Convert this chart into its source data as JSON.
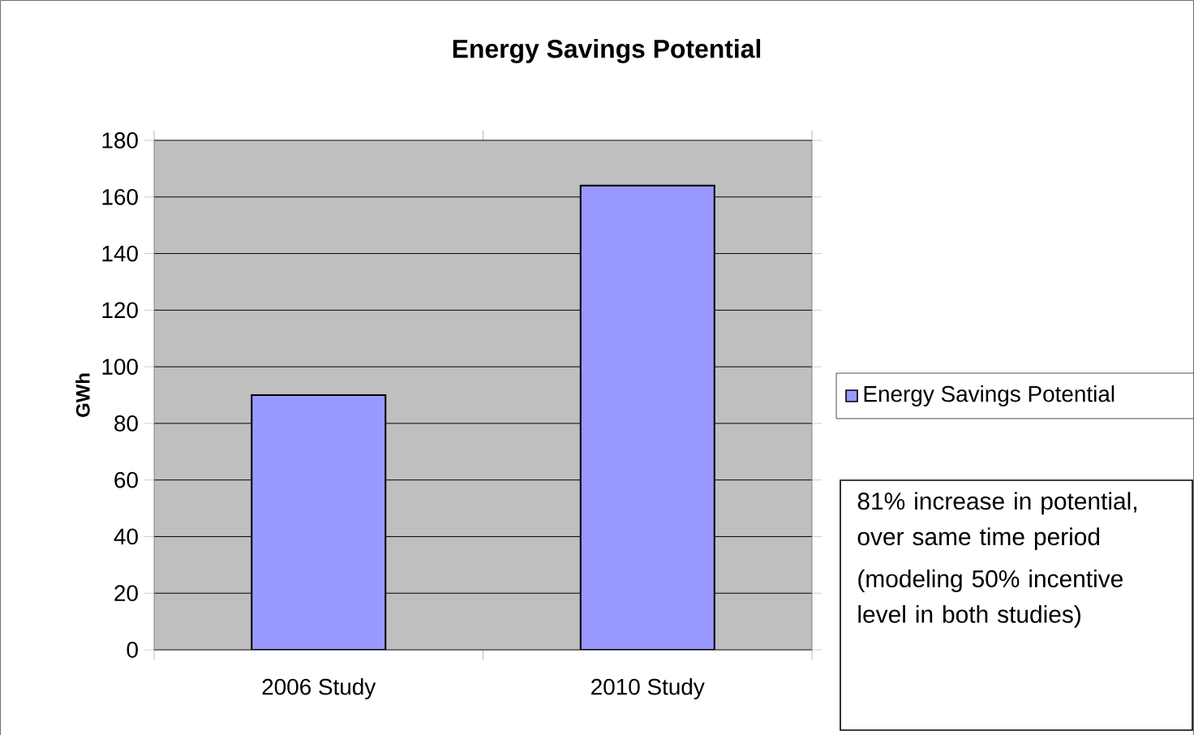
{
  "chart_data": {
    "type": "bar",
    "title": "Energy Savings Potential",
    "ylabel": "GWh",
    "categories": [
      "2006 Study",
      "2010 Study"
    ],
    "series": [
      {
        "name": "Energy Savings Potential",
        "color": "#9999ff",
        "values": [
          90,
          164
        ]
      }
    ],
    "ylim": [
      0,
      180
    ],
    "yticks": [
      0,
      20,
      40,
      60,
      80,
      100,
      120,
      140,
      160,
      180
    ],
    "grid": "y",
    "legend": "right",
    "annotations": [
      "81% increase  in potential, over same time period",
      "(modeling 50% incentive level in both studies)"
    ]
  }
}
